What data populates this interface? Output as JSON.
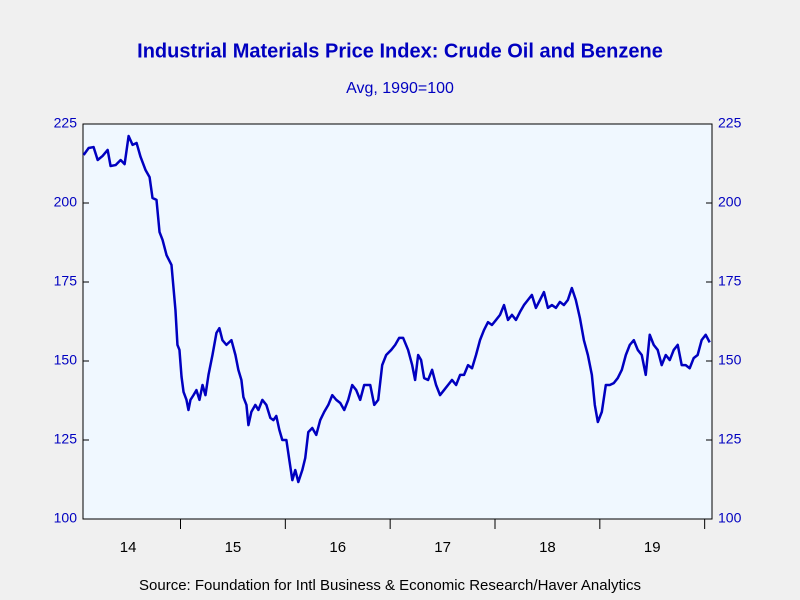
{
  "chart_data": {
    "type": "line",
    "title": "Industrial Materials Price Index: Crude Oil and Benzene",
    "subtitle": "Avg, 1990=100",
    "source": "Source:  Foundation for Intl Business & Economic Research/Haver Analytics",
    "color": "#0000c0",
    "xlim": [
      2014.07,
      2020.07
    ],
    "ylim": [
      100,
      225
    ],
    "yticks": [
      100,
      125,
      150,
      175,
      200,
      225
    ],
    "y2lim": [
      100,
      225
    ],
    "y2ticks": [
      100,
      125,
      150,
      175,
      200,
      225
    ],
    "xticks": [
      {
        "value": 2014.5,
        "label": "14"
      },
      {
        "value": 2015.5,
        "label": "15"
      },
      {
        "value": 2016.5,
        "label": "16"
      },
      {
        "value": 2017.5,
        "label": "17"
      },
      {
        "value": 2018.5,
        "label": "18"
      },
      {
        "value": 2019.5,
        "label": "19"
      }
    ],
    "xminor_ticks": [
      2015,
      2016,
      2017,
      2018,
      2019,
      2020
    ],
    "x": [
      2014.076,
      2014.124,
      2014.171,
      2014.21,
      2014.257,
      2014.305,
      2014.333,
      2014.381,
      2014.429,
      2014.467,
      2014.505,
      2014.543,
      2014.581,
      2014.619,
      2014.667,
      2014.705,
      2014.733,
      2014.771,
      2014.8,
      2014.829,
      2014.867,
      2014.914,
      2014.952,
      2014.971,
      2014.99,
      2015.01,
      2015.029,
      2015.057,
      2015.076,
      2015.095,
      2015.124,
      2015.152,
      2015.181,
      2015.21,
      2015.238,
      2015.267,
      2015.305,
      2015.343,
      2015.371,
      2015.4,
      2015.438,
      2015.486,
      2015.524,
      2015.552,
      2015.581,
      2015.6,
      2015.629,
      2015.648,
      2015.676,
      2015.714,
      2015.743,
      2015.781,
      2015.819,
      2015.857,
      2015.886,
      2015.914,
      2015.943,
      2015.971,
      2016.01,
      2016.038,
      2016.067,
      2016.095,
      2016.124,
      2016.162,
      2016.19,
      2016.219,
      2016.257,
      2016.295,
      2016.333,
      2016.371,
      2016.41,
      2016.448,
      2016.486,
      2016.524,
      2016.562,
      2016.6,
      2016.638,
      2016.676,
      2016.714,
      2016.752,
      2016.81,
      2016.848,
      2016.886,
      2016.924,
      2016.962,
      2017.01,
      2017.048,
      2017.086,
      2017.124,
      2017.171,
      2017.21,
      2017.238,
      2017.267,
      2017.295,
      2017.324,
      2017.362,
      2017.4,
      2017.438,
      2017.476,
      2017.514,
      2017.552,
      2017.59,
      2017.629,
      2017.667,
      2017.705,
      2017.743,
      2017.781,
      2017.819,
      2017.857,
      2017.895,
      2017.933,
      2017.971,
      2018.01,
      2018.048,
      2018.086,
      2018.124,
      2018.162,
      2018.2,
      2018.238,
      2018.276,
      2018.314,
      2018.352,
      2018.39,
      2018.429,
      2018.467,
      2018.505,
      2018.543,
      2018.581,
      2018.619,
      2018.657,
      2018.695,
      2018.733,
      2018.771,
      2018.81,
      2018.848,
      2018.886,
      2018.924,
      2018.952,
      2018.981,
      2019.019,
      2019.057,
      2019.095,
      2019.133,
      2019.171,
      2019.21,
      2019.248,
      2019.286,
      2019.324,
      2019.362,
      2019.4,
      2019.438,
      2019.476,
      2019.514,
      2019.552,
      2019.59,
      2019.629,
      2019.667,
      2019.705,
      2019.743,
      2019.781,
      2019.819,
      2019.857,
      2019.895,
      2019.933,
      2019.971,
      2020.01,
      2020.048
    ],
    "series": [
      {
        "name": "Crude Oil and Benzene",
        "color": "#0000c0",
        "values": [
          215.2,
          217.4,
          217.7,
          213.6,
          214.9,
          216.8,
          211.7,
          212,
          213.6,
          212.3,
          221.2,
          218.4,
          219,
          214.6,
          210.4,
          208.2,
          201.6,
          201,
          190.8,
          188.3,
          183.5,
          180.4,
          166.1,
          155.1,
          153.5,
          145,
          140.2,
          137.7,
          134.5,
          137.7,
          139.2,
          140.8,
          137.7,
          142.4,
          139.2,
          145.6,
          151.9,
          158.9,
          160.4,
          156.6,
          155.1,
          156.6,
          151.9,
          147.2,
          144,
          138.6,
          136.1,
          129.7,
          133.9,
          136.1,
          134.5,
          137.7,
          136.1,
          132,
          131.3,
          132.6,
          128.2,
          125,
          125,
          118.7,
          112.3,
          115.5,
          111.7,
          115.5,
          119.3,
          127.5,
          128.8,
          126.6,
          131.3,
          133.9,
          136.1,
          139.2,
          137.7,
          136.7,
          134.5,
          137.7,
          142.4,
          140.8,
          137.7,
          142.4,
          142.4,
          136.1,
          137.7,
          148.7,
          151.9,
          153.5,
          155.1,
          157.3,
          157.3,
          153.5,
          148.7,
          144,
          151.9,
          150.3,
          144.6,
          144,
          147.2,
          142.4,
          139.2,
          140.8,
          142.4,
          144,
          142.4,
          145.6,
          145.6,
          148.7,
          147.7,
          151.9,
          156.6,
          159.8,
          162.3,
          161.4,
          163,
          164.6,
          167.7,
          163,
          164.6,
          163,
          165.5,
          167.7,
          169.3,
          170.9,
          166.8,
          169.3,
          171.8,
          166.8,
          167.7,
          166.8,
          168.7,
          167.7,
          169.3,
          173.1,
          169.3,
          163.6,
          156.6,
          151.9,
          145.6,
          136.1,
          130.7,
          133.9,
          142.4,
          142.4,
          143,
          144.6,
          147.2,
          151.9,
          155.1,
          156.6,
          153.5,
          151.9,
          145.6,
          158.3,
          155.1,
          153.5,
          148.7,
          151.9,
          150.3,
          153.5,
          155.1,
          148.7,
          148.7,
          147.7,
          150.9,
          151.9,
          156.6,
          158.3,
          155.9
        ]
      }
    ]
  }
}
